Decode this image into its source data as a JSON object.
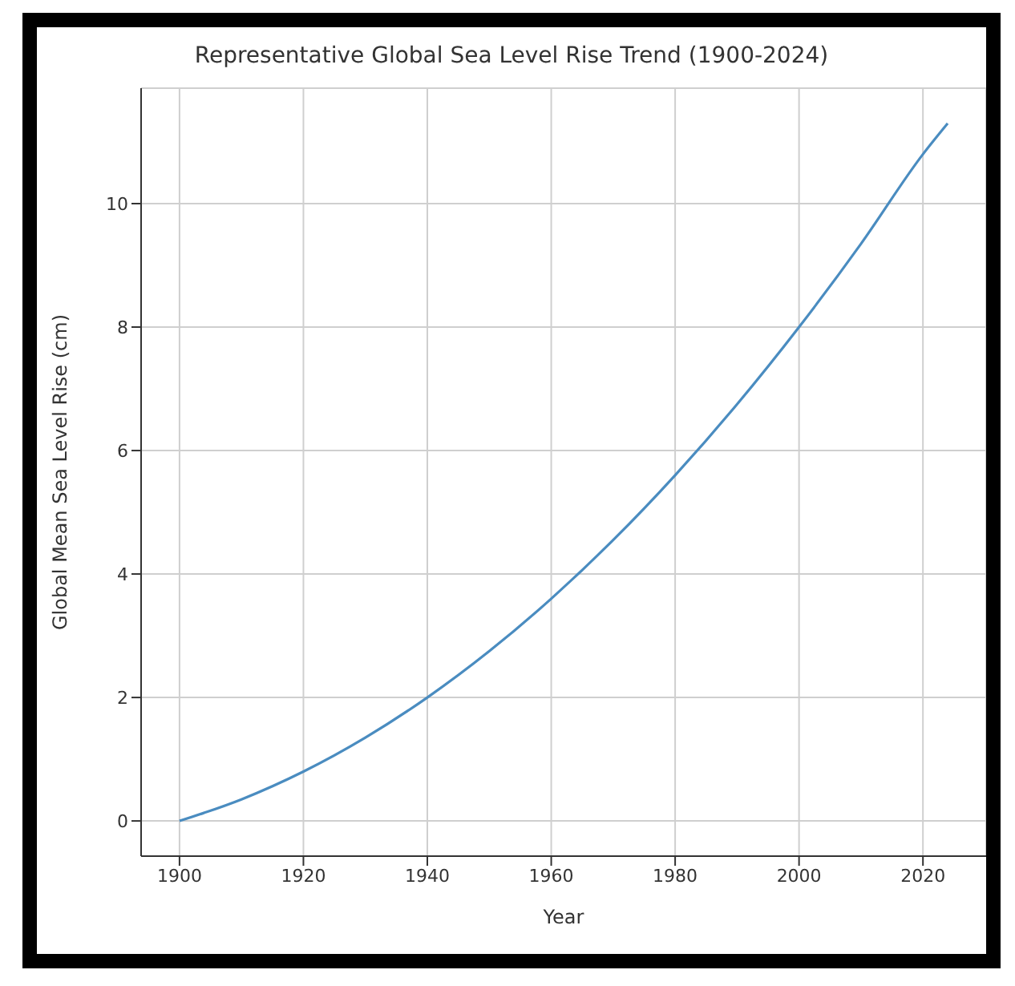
{
  "chart_data": {
    "type": "line",
    "title": "Representative Global Sea Level Rise Trend (1900-2024)",
    "xlabel": "Year",
    "ylabel": "Global Mean Sea Level Rise (cm)",
    "x": [
      1900,
      1910,
      1920,
      1930,
      1940,
      1950,
      1960,
      1970,
      1980,
      1990,
      2000,
      2010,
      2020,
      2024
    ],
    "series": [
      {
        "color": "#4a8cc0",
        "values": [
          0,
          0.35,
          0.8,
          1.35,
          2.0,
          2.75,
          3.6,
          4.55,
          5.6,
          6.75,
          8.0,
          9.35,
          10.8,
          11.3
        ]
      }
    ],
    "xlim": [
      1893.8,
      2030.2
    ],
    "xticks": [
      1900,
      1920,
      1940,
      1960,
      1980,
      2000,
      2020
    ],
    "ylim": [
      -0.57,
      11.87
    ],
    "yticks": [
      0,
      2,
      4,
      6,
      8,
      10
    ],
    "grid": true,
    "marker": "none",
    "line_style": "solid"
  }
}
